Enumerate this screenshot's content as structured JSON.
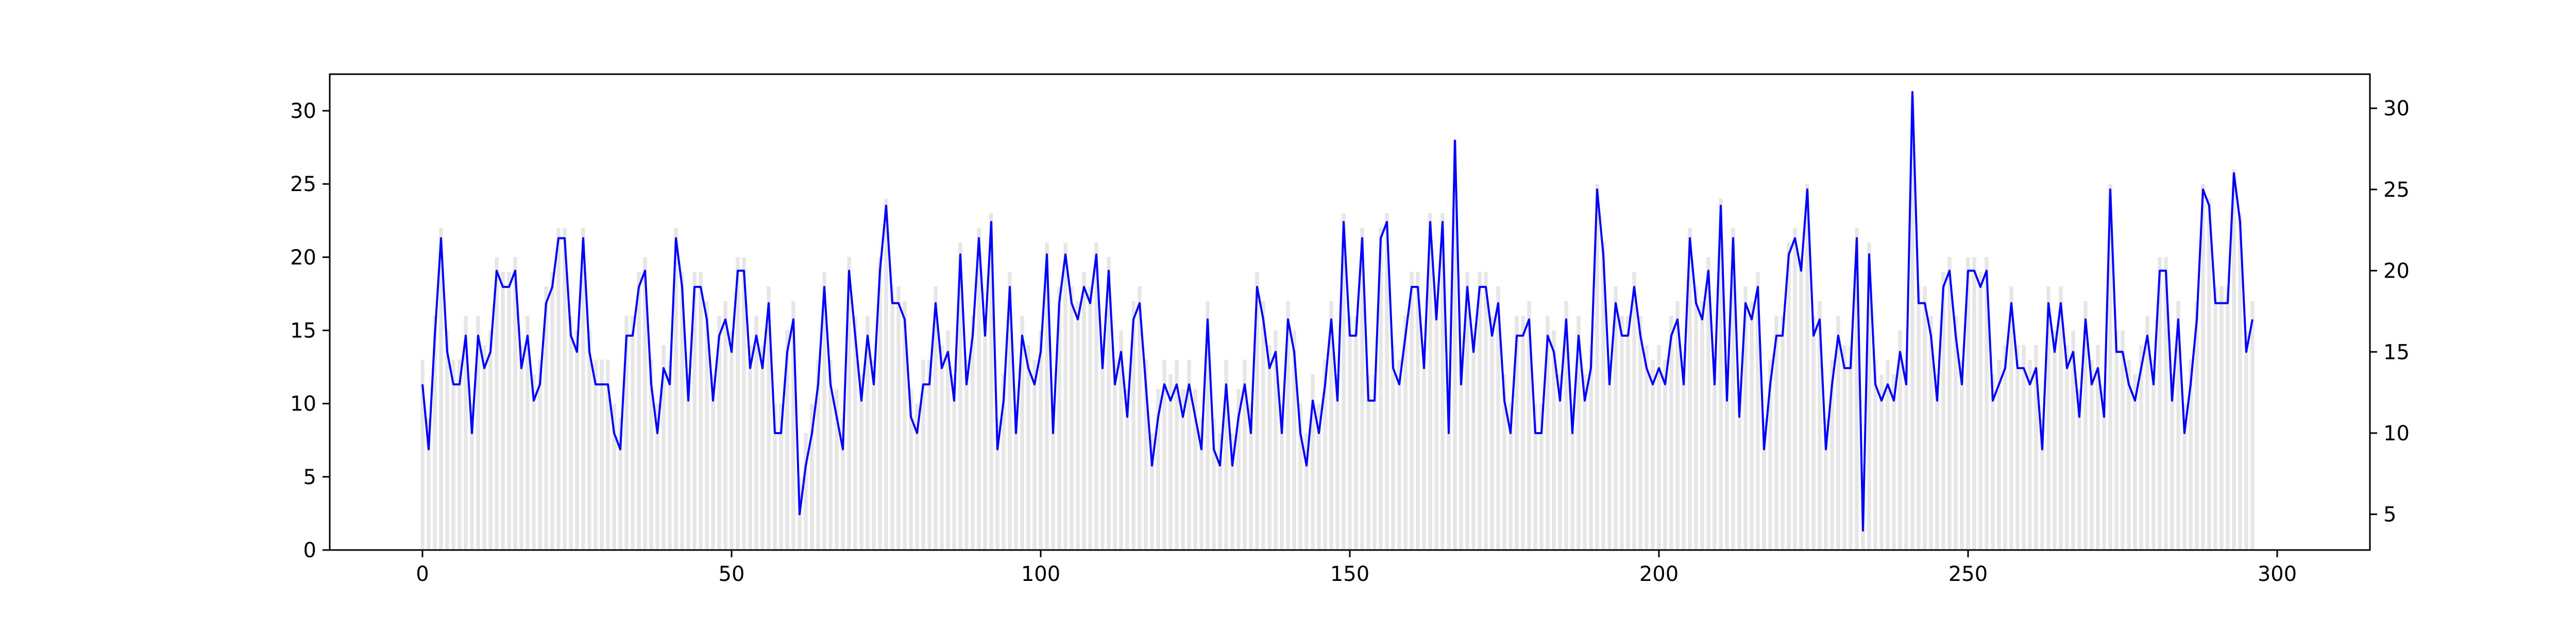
{
  "chart_data": {
    "type": "bar",
    "title": "",
    "xlabel": "",
    "ylabel": "",
    "grid": false,
    "x_range": [
      -15,
      315
    ],
    "left_axis": {
      "range": [
        0,
        32.5
      ],
      "ticks": [
        0,
        5,
        10,
        15,
        20,
        25,
        30
      ]
    },
    "right_axis": {
      "range": [
        2.8,
        32.1
      ],
      "ticks": [
        5,
        10,
        15,
        20,
        25,
        30
      ]
    },
    "x_ticks": [
      0,
      50,
      100,
      150,
      200,
      250,
      300
    ],
    "colors": {
      "bars": "#e6e6e6",
      "line": "#0000ff",
      "axes": "#000000"
    },
    "series": [
      {
        "type": "bar",
        "axis": "left",
        "values": [
          13,
          9,
          16,
          22,
          15,
          13,
          13,
          16,
          10,
          16,
          14,
          15,
          20,
          19,
          19,
          20,
          14,
          16,
          12,
          13,
          18,
          19,
          22,
          22,
          16,
          15,
          22,
          15,
          13,
          13,
          13,
          10,
          9,
          16,
          16,
          19,
          20,
          13,
          10,
          14,
          13,
          22,
          19,
          12,
          19,
          19,
          17,
          12,
          16,
          17,
          15,
          20,
          20,
          14,
          16,
          14,
          18,
          10,
          10,
          15,
          17,
          5,
          8,
          10,
          13,
          19,
          13,
          11,
          9,
          20,
          16,
          12,
          16,
          13,
          20,
          24,
          18,
          18,
          17,
          11,
          10,
          13,
          13,
          18,
          14,
          15,
          12,
          21,
          13,
          16,
          22,
          16,
          23,
          9,
          12,
          19,
          10,
          16,
          14,
          13,
          15,
          21,
          10,
          18,
          21,
          18,
          17,
          19,
          18,
          21,
          14,
          20,
          13,
          15,
          11,
          17,
          18,
          13,
          8,
          11,
          13,
          12,
          13,
          11,
          13,
          11,
          9,
          17,
          9,
          8,
          13,
          8,
          11,
          13,
          10,
          19,
          17,
          14,
          15,
          10,
          17,
          15,
          10,
          8,
          12,
          10,
          13,
          17,
          12,
          23,
          16,
          16,
          22,
          12,
          12,
          22,
          23,
          14,
          13,
          16,
          19,
          19,
          14,
          23,
          17,
          23,
          10,
          28,
          13,
          19,
          15,
          19,
          19,
          16,
          18,
          12,
          10,
          16,
          16,
          17,
          10,
          10,
          16,
          15,
          12,
          17,
          10,
          16,
          12,
          14,
          25,
          21,
          13,
          18,
          16,
          16,
          19,
          16,
          14,
          13,
          14,
          13,
          16,
          17,
          13,
          22,
          18,
          17,
          20,
          13,
          24,
          12,
          22,
          11,
          18,
          17,
          19,
          9,
          13,
          16,
          16,
          21,
          22,
          20,
          25,
          16,
          17,
          9,
          13,
          16,
          14,
          14,
          22,
          4,
          21,
          13,
          12,
          13,
          12,
          15,
          13,
          31,
          18,
          18,
          16,
          12,
          19,
          20,
          16,
          13,
          20,
          20,
          19,
          20,
          12,
          13,
          14,
          18,
          14,
          14,
          13,
          14,
          9,
          18,
          15,
          18,
          14,
          15,
          11,
          17,
          13,
          14,
          11,
          25,
          15,
          15,
          13,
          12,
          14,
          16,
          13,
          20,
          20,
          12,
          17,
          10,
          13,
          17,
          25,
          24,
          18,
          18,
          18,
          26,
          23,
          15,
          17
        ]
      },
      {
        "type": "line",
        "axis": "right",
        "values": [
          13,
          9,
          16,
          22,
          15,
          13,
          13,
          16,
          10,
          16,
          14,
          15,
          20,
          19,
          19,
          20,
          14,
          16,
          12,
          13,
          18,
          19,
          22,
          22,
          16,
          15,
          22,
          15,
          13,
          13,
          13,
          10,
          9,
          16,
          16,
          19,
          20,
          13,
          10,
          14,
          13,
          22,
          19,
          12,
          19,
          19,
          17,
          12,
          16,
          17,
          15,
          20,
          20,
          14,
          16,
          14,
          18,
          10,
          10,
          15,
          17,
          5,
          8,
          10,
          13,
          19,
          13,
          11,
          9,
          20,
          16,
          12,
          16,
          13,
          20,
          24,
          18,
          18,
          17,
          11,
          10,
          13,
          13,
          18,
          14,
          15,
          12,
          21,
          13,
          16,
          22,
          16,
          23,
          9,
          12,
          19,
          10,
          16,
          14,
          13,
          15,
          21,
          10,
          18,
          21,
          18,
          17,
          19,
          18,
          21,
          14,
          20,
          13,
          15,
          11,
          17,
          18,
          13,
          8,
          11,
          13,
          12,
          13,
          11,
          13,
          11,
          9,
          17,
          9,
          8,
          13,
          8,
          11,
          13,
          10,
          19,
          17,
          14,
          15,
          10,
          17,
          15,
          10,
          8,
          12,
          10,
          13,
          17,
          12,
          23,
          16,
          16,
          22,
          12,
          12,
          22,
          23,
          14,
          13,
          16,
          19,
          19,
          14,
          23,
          17,
          23,
          10,
          28,
          13,
          19,
          15,
          19,
          19,
          16,
          18,
          12,
          10,
          16,
          16,
          17,
          10,
          10,
          16,
          15,
          12,
          17,
          10,
          16,
          12,
          14,
          25,
          21,
          13,
          18,
          16,
          16,
          19,
          16,
          14,
          13,
          14,
          13,
          16,
          17,
          13,
          22,
          18,
          17,
          20,
          13,
          24,
          12,
          22,
          11,
          18,
          17,
          19,
          9,
          13,
          16,
          16,
          21,
          22,
          20,
          25,
          16,
          17,
          9,
          13,
          16,
          14,
          14,
          22,
          4,
          21,
          13,
          12,
          13,
          12,
          15,
          13,
          31,
          18,
          18,
          16,
          12,
          19,
          20,
          16,
          13,
          20,
          20,
          19,
          20,
          12,
          13,
          14,
          18,
          14,
          14,
          13,
          14,
          9,
          18,
          15,
          18,
          14,
          15,
          11,
          17,
          13,
          14,
          11,
          25,
          15,
          15,
          13,
          12,
          14,
          16,
          13,
          20,
          20,
          12,
          17,
          10,
          13,
          17,
          25,
          24,
          18,
          18,
          18,
          26,
          23,
          15,
          17
        ]
      }
    ]
  }
}
